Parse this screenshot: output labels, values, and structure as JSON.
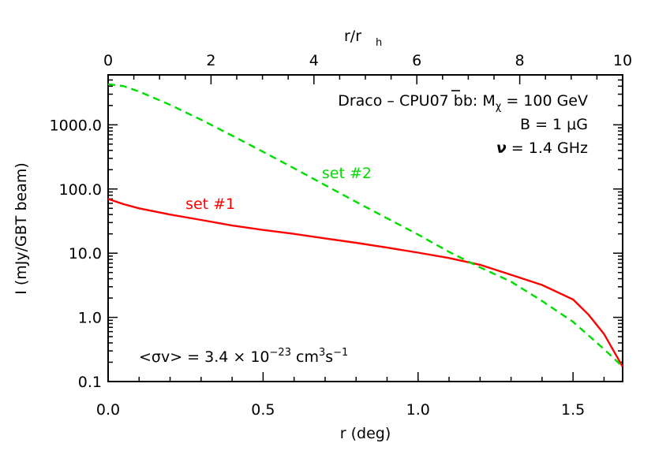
{
  "chart_data": {
    "type": "line",
    "xlabel": "r (deg)",
    "ylabel": "I (mJy/GBT beam)",
    "top_xlabel_main": "r/r",
    "top_xlabel_sub": "h",
    "xlim": [
      0.0,
      1.66
    ],
    "ylim": [
      0.1,
      6000
    ],
    "y_scale": "log",
    "top_xlim": [
      0,
      10
    ],
    "x_ticks": [
      "0.0",
      "0.5",
      "1.0",
      "1.5"
    ],
    "x_tick_values": [
      0.0,
      0.5,
      1.0,
      1.5
    ],
    "top_ticks": [
      "0",
      "2",
      "4",
      "6",
      "8",
      "10"
    ],
    "top_tick_values": [
      0,
      2,
      4,
      6,
      8,
      10
    ],
    "y_ticks": [
      "0.1",
      "1.0",
      "10.0",
      "100.0",
      "1000.0"
    ],
    "y_tick_values": [
      0.1,
      1.0,
      10.0,
      100.0,
      1000.0
    ],
    "annotations": {
      "line1": "Draco – CPU07 b",
      "line1_bbar": "b",
      "line1_sep": ": M",
      "line1_sub": "χ",
      "line1_tail": " = 100 GeV",
      "line2": "B = 1 μG",
      "line3_nu": "ν",
      "line3_tail": " = 1.4 GHz",
      "sigma_main": "<σv> = 3.4 × 10",
      "sigma_exp1": "−23",
      "sigma_mid": " cm",
      "sigma_exp2": "3",
      "sigma_s": "s",
      "sigma_exp3": "−1"
    },
    "series": [
      {
        "name": "set #1",
        "color": "#ff0000",
        "style": "solid",
        "x": [
          0.0,
          0.05,
          0.1,
          0.2,
          0.3,
          0.4,
          0.5,
          0.6,
          0.7,
          0.8,
          0.9,
          1.0,
          1.1,
          1.2,
          1.3,
          1.4,
          1.5,
          1.55,
          1.6,
          1.66
        ],
        "y": [
          70,
          58,
          50,
          40,
          33,
          27,
          23,
          20,
          17,
          14.5,
          12.2,
          10.2,
          8.4,
          6.6,
          4.6,
          3.2,
          1.9,
          1.1,
          0.55,
          0.17
        ]
      },
      {
        "name": "set #2",
        "color": "#00dd00",
        "style": "dashed",
        "x": [
          0.0,
          0.05,
          0.1,
          0.2,
          0.3,
          0.4,
          0.5,
          0.6,
          0.7,
          0.8,
          0.9,
          1.0,
          1.1,
          1.2,
          1.3,
          1.4,
          1.5,
          1.6,
          1.66
        ],
        "y": [
          4300,
          4000,
          3300,
          2050,
          1200,
          680,
          380,
          210,
          115,
          63,
          35,
          19.5,
          10.5,
          6.0,
          3.6,
          1.8,
          0.85,
          0.32,
          0.17
        ]
      }
    ],
    "series_labels": [
      {
        "text": "set #1",
        "color": "#ff0000",
        "x": 0.33,
        "y": 49
      },
      {
        "text": "set #2",
        "color": "#00dd00",
        "x": 0.77,
        "y": 148
      }
    ]
  }
}
